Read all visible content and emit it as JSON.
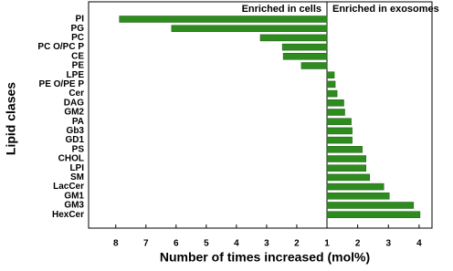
{
  "chart_data": {
    "type": "bar",
    "orientation": "horizontal",
    "x_label": "Number of times increased (mol%)",
    "y_label": "Lipid clases",
    "categories": [
      "PI",
      "PG",
      "PC",
      "PC O/PC P",
      "CE",
      "PE",
      "LPE",
      "PE O/PE P",
      "Cer",
      "DAG",
      "GM2",
      "PA",
      "Gb3",
      "GD1",
      "PS",
      "CHOL",
      "LPI",
      "SM",
      "LacCer",
      "GM1",
      "GM3",
      "HexCer"
    ],
    "series": [
      {
        "name": "Enriched in cells",
        "color": "#2e8b1e",
        "xlim": [
          8.9,
          1
        ],
        "xticks": [
          8,
          7,
          6,
          5,
          4,
          3,
          2,
          1
        ],
        "values": [
          7.88,
          6.15,
          3.21,
          2.48,
          2.45,
          1.85,
          null,
          null,
          null,
          null,
          null,
          null,
          null,
          null,
          null,
          null,
          null,
          null,
          null,
          null,
          null,
          null
        ]
      },
      {
        "name": "Enriched in exosomes",
        "color": "#2e8b1e",
        "xlim": [
          1,
          4.42
        ],
        "xticks": [
          2,
          3,
          4
        ],
        "values": [
          null,
          null,
          null,
          null,
          null,
          null,
          1.24,
          1.27,
          1.33,
          1.55,
          1.58,
          1.79,
          1.82,
          1.82,
          2.15,
          2.27,
          2.27,
          2.39,
          2.85,
          3.03,
          3.82,
          4.03
        ]
      }
    ]
  }
}
